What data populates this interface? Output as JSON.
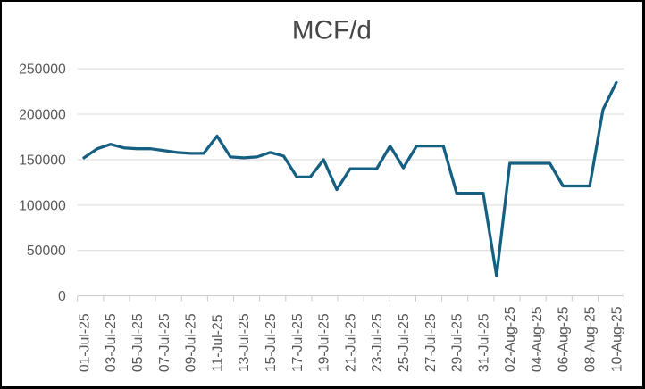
{
  "chart_data": {
    "type": "line",
    "title": "MCF/d",
    "xlabel": "",
    "ylabel": "",
    "ylim": [
      0,
      250000
    ],
    "y_tick_interval": 50000,
    "y_tick_labels": [
      "0",
      "50000",
      "100000",
      "150000",
      "200000",
      "250000"
    ],
    "grid": true,
    "legend": false,
    "series_color": "#156082",
    "categories": [
      "01-Jul-25",
      "02-Jul-25",
      "03-Jul-25",
      "04-Jul-25",
      "05-Jul-25",
      "06-Jul-25",
      "07-Jul-25",
      "08-Jul-25",
      "09-Jul-25",
      "10-Jul-25",
      "11-Jul-25",
      "12-Jul-25",
      "13-Jul-25",
      "14-Jul-25",
      "15-Jul-25",
      "16-Jul-25",
      "17-Jul-25",
      "18-Jul-25",
      "19-Jul-25",
      "20-Jul-25",
      "21-Jul-25",
      "22-Jul-25",
      "23-Jul-25",
      "24-Jul-25",
      "25-Jul-25",
      "26-Jul-25",
      "27-Jul-25",
      "28-Jul-25",
      "29-Jul-25",
      "30-Jul-25",
      "31-Jul-25",
      "01-Aug-25",
      "02-Aug-25",
      "03-Aug-25",
      "04-Aug-25",
      "05-Aug-25",
      "06-Aug-25",
      "07-Aug-25",
      "08-Aug-25",
      "09-Aug-25",
      "10-Aug-25"
    ],
    "values": [
      152000,
      162000,
      167000,
      163000,
      162000,
      162000,
      160000,
      158000,
      157000,
      157000,
      176000,
      153000,
      152000,
      153000,
      158000,
      154000,
      131000,
      131000,
      150000,
      117000,
      140000,
      140000,
      140000,
      165000,
      141000,
      165000,
      165000,
      165000,
      113000,
      113000,
      113000,
      22000,
      146000,
      146000,
      146000,
      146000,
      121000,
      121000,
      121000,
      205000,
      235000
    ],
    "x_tick_labels": [
      "01-Jul-25",
      "03-Jul-25",
      "05-Jul-25",
      "07-Jul-25",
      "09-Jul-25",
      "11-Jul-25",
      "13-Jul-25",
      "15-Jul-25",
      "17-Jul-25",
      "19-Jul-25",
      "21-Jul-25",
      "23-Jul-25",
      "25-Jul-25",
      "27-Jul-25",
      "29-Jul-25",
      "31-Jul-25",
      "02-Aug-25",
      "04-Aug-25",
      "06-Aug-25",
      "08-Aug-25",
      "10-Aug-25"
    ],
    "colors": {
      "gridline": "#D9D9D9",
      "axis": "#C8C8C8",
      "label_text": "#595959",
      "title_text": "#474747",
      "background": "#FFFFFF",
      "frame_border": "#000000"
    }
  }
}
